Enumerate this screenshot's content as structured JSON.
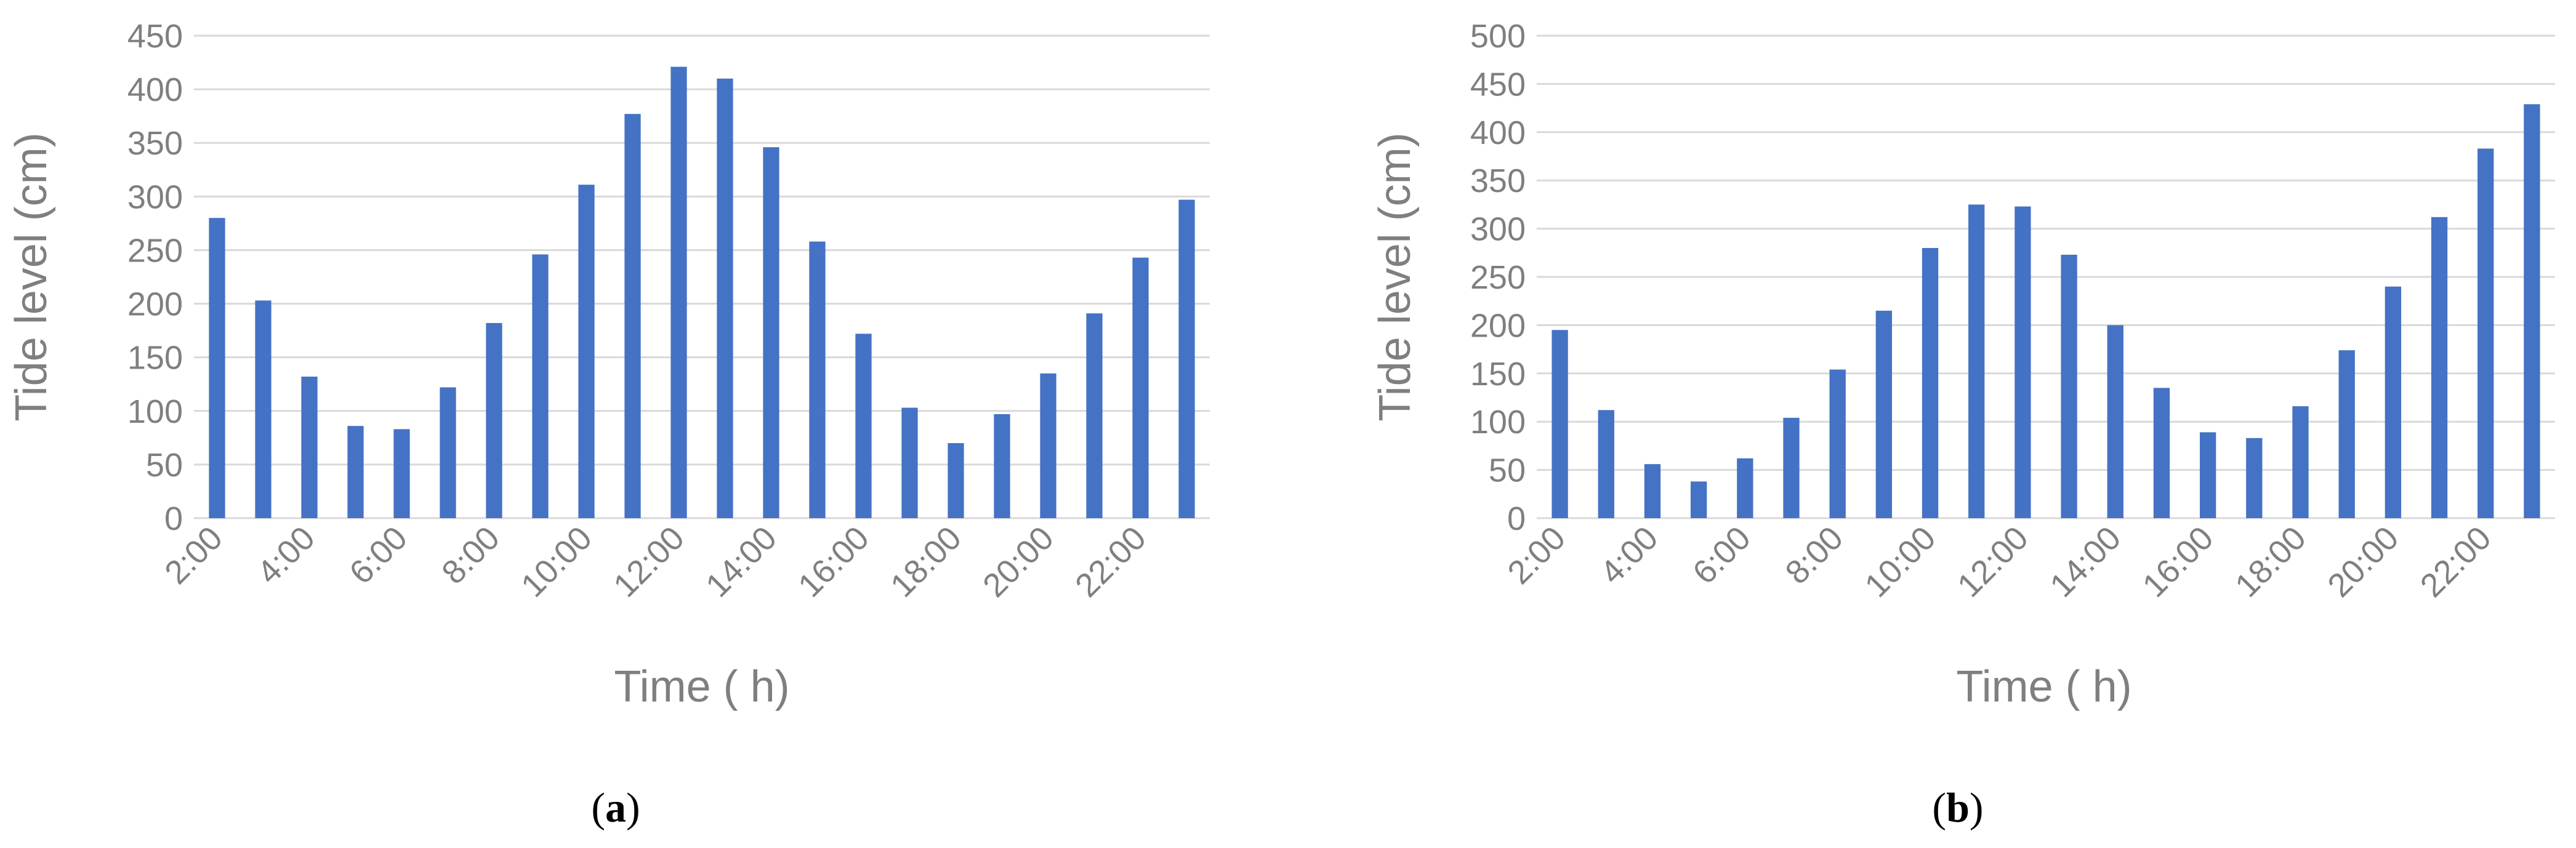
{
  "colors": {
    "bar": "#4472C4",
    "grid": "#D9D9D9",
    "text": "#7F7F7F"
  },
  "chart_data": [
    {
      "type": "bar",
      "panel_label": "a",
      "title": "",
      "xlabel": "Time ( h)",
      "ylabel": "Tide level (cm)",
      "ylim": [
        0,
        450
      ],
      "yticks": [
        0,
        50,
        100,
        150,
        200,
        250,
        300,
        350,
        400,
        450
      ],
      "grid": true,
      "categories": [
        "2:00",
        "3:00",
        "4:00",
        "5:00",
        "6:00",
        "7:00",
        "8:00",
        "9:00",
        "10:00",
        "11:00",
        "12:00",
        "13:00",
        "14:00",
        "15:00",
        "16:00",
        "17:00",
        "18:00",
        "19:00",
        "20:00",
        "21:00",
        "22:00",
        "23:00"
      ],
      "tick_labels": [
        "2:00",
        "4:00",
        "6:00",
        "8:00",
        "10:00",
        "12:00",
        "14:00",
        "16:00",
        "18:00",
        "20:00",
        "22:00"
      ],
      "values": [
        280,
        203,
        132,
        86,
        83,
        122,
        182,
        246,
        311,
        377,
        421,
        410,
        346,
        258,
        172,
        103,
        70,
        97,
        135,
        191,
        243,
        297
      ]
    },
    {
      "type": "bar",
      "panel_label": "b",
      "title": "",
      "xlabel": "Time ( h)",
      "ylabel": "Tide level (cm)",
      "ylim": [
        0,
        500
      ],
      "yticks": [
        0,
        50,
        100,
        150,
        200,
        250,
        300,
        350,
        400,
        450,
        500
      ],
      "grid": true,
      "categories": [
        "2:00",
        "3:00",
        "4:00",
        "5:00",
        "6:00",
        "7:00",
        "8:00",
        "9:00",
        "10:00",
        "11:00",
        "12:00",
        "13:00",
        "14:00",
        "15:00",
        "16:00",
        "17:00",
        "18:00",
        "19:00",
        "20:00",
        "21:00",
        "22:00",
        "23:00"
      ],
      "tick_labels": [
        "2:00",
        "4:00",
        "6:00",
        "8:00",
        "10:00",
        "12:00",
        "14:00",
        "16:00",
        "18:00",
        "20:00",
        "22:00"
      ],
      "values": [
        195,
        112,
        56,
        38,
        62,
        104,
        154,
        215,
        280,
        325,
        323,
        273,
        200,
        135,
        89,
        83,
        116,
        174,
        240,
        312,
        383,
        429
      ]
    }
  ]
}
